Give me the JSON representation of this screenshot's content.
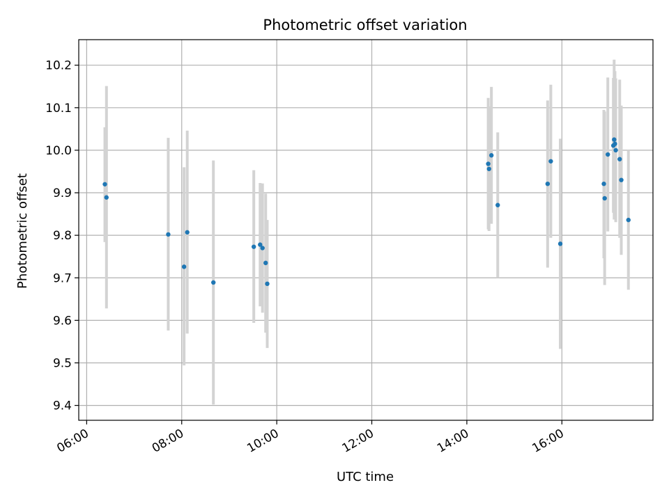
{
  "chart_data": {
    "type": "scatter",
    "title": "Photometric offset variation",
    "xlabel": "UTC time",
    "ylabel": "Photometric offset",
    "x_unit": "UTC time (HH:MM)",
    "xlim": [
      "05:50",
      "17:55"
    ],
    "ylim": [
      9.365,
      10.26
    ],
    "xticks": [
      "06:00",
      "08:00",
      "10:00",
      "12:00",
      "14:00",
      "16:00"
    ],
    "yticks": [
      9.4,
      9.5,
      9.6,
      9.7,
      9.8,
      9.9,
      10.0,
      10.1,
      10.2
    ],
    "ytick_labels": [
      "9.4",
      "9.5",
      "9.6",
      "9.7",
      "9.8",
      "9.9",
      "10.0",
      "10.1",
      "10.2"
    ],
    "grid": true,
    "legend": "none",
    "colors": {
      "points": "#1f77b4",
      "errorbars": "#d3d3d3",
      "grid": "#b0b0b0"
    },
    "points": [
      {
        "x": "06:23",
        "y": 9.92,
        "yerr_low": 9.784,
        "yerr_high": 10.054
      },
      {
        "x": "06:25",
        "y": 9.889,
        "yerr_low": 9.628,
        "yerr_high": 10.151
      },
      {
        "x": "07:43",
        "y": 9.802,
        "yerr_low": 9.576,
        "yerr_high": 10.029
      },
      {
        "x": "08:03",
        "y": 9.726,
        "yerr_low": 9.494,
        "yerr_high": 9.96
      },
      {
        "x": "08:07",
        "y": 9.807,
        "yerr_low": 9.569,
        "yerr_high": 10.046
      },
      {
        "x": "08:40",
        "y": 9.689,
        "yerr_low": 9.402,
        "yerr_high": 9.976
      },
      {
        "x": "09:31",
        "y": 9.773,
        "yerr_low": 9.594,
        "yerr_high": 9.953
      },
      {
        "x": "09:39",
        "y": 9.778,
        "yerr_low": 9.633,
        "yerr_high": 9.923
      },
      {
        "x": "09:42",
        "y": 9.77,
        "yerr_low": 9.618,
        "yerr_high": 9.922
      },
      {
        "x": "09:46",
        "y": 9.735,
        "yerr_low": 9.571,
        "yerr_high": 9.898
      },
      {
        "x": "09:48",
        "y": 9.686,
        "yerr_low": 9.535,
        "yerr_high": 9.836
      },
      {
        "x": "14:27",
        "y": 9.968,
        "yerr_low": 9.814,
        "yerr_high": 10.123
      },
      {
        "x": "14:28",
        "y": 9.956,
        "yerr_low": 9.81,
        "yerr_high": 10.103
      },
      {
        "x": "14:31",
        "y": 9.988,
        "yerr_low": 9.827,
        "yerr_high": 10.149
      },
      {
        "x": "14:39",
        "y": 9.871,
        "yerr_low": 9.7,
        "yerr_high": 10.042
      },
      {
        "x": "15:42",
        "y": 9.921,
        "yerr_low": 9.724,
        "yerr_high": 10.117
      },
      {
        "x": "15:46",
        "y": 9.974,
        "yerr_low": 9.794,
        "yerr_high": 10.154
      },
      {
        "x": "15:58",
        "y": 9.78,
        "yerr_low": 9.533,
        "yerr_high": 10.027
      },
      {
        "x": "16:53",
        "y": 9.921,
        "yerr_low": 9.746,
        "yerr_high": 10.095
      },
      {
        "x": "16:54",
        "y": 9.887,
        "yerr_low": 9.683,
        "yerr_high": 10.091
      },
      {
        "x": "16:58",
        "y": 9.99,
        "yerr_low": 9.809,
        "yerr_high": 10.171
      },
      {
        "x": "17:05",
        "y": 10.011,
        "yerr_low": 9.853,
        "yerr_high": 10.17
      },
      {
        "x": "17:06",
        "y": 10.025,
        "yerr_low": 9.837,
        "yerr_high": 10.213
      },
      {
        "x": "17:07",
        "y": 10.015,
        "yerr_low": 9.846,
        "yerr_high": 10.186
      },
      {
        "x": "17:08",
        "y": 10.0,
        "yerr_low": 9.831,
        "yerr_high": 10.169
      },
      {
        "x": "17:13",
        "y": 9.979,
        "yerr_low": 9.794,
        "yerr_high": 10.166
      },
      {
        "x": "17:15",
        "y": 9.93,
        "yerr_low": 9.754,
        "yerr_high": 10.105
      },
      {
        "x": "17:24",
        "y": 9.836,
        "yerr_low": 9.672,
        "yerr_high": 10.0
      }
    ]
  }
}
